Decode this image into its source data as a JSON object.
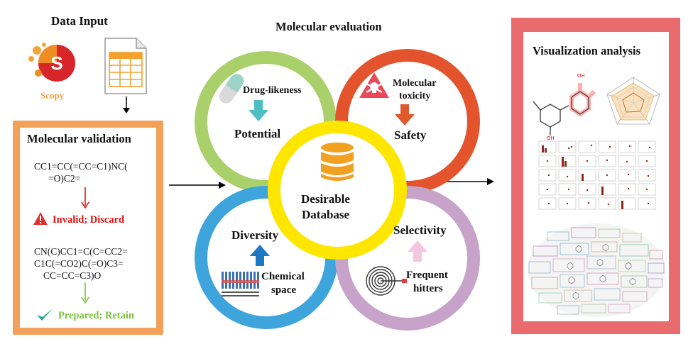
{
  "data_input": {
    "title": "Data Input",
    "scopy_label": "Scopy"
  },
  "validation": {
    "title": "Molecular validation",
    "smiles_invalid": [
      "CC1=CC(=CC=C1)NC(",
      "=O)C2="
    ],
    "invalid_label": "Invalid; Discard",
    "smiles_valid": [
      "CN(C)CC1=C(C=CC2=",
      "C1C(=CO2)C(=O)C3=",
      "CC=CC=C3)O"
    ],
    "valid_label": "Prepared; Retain"
  },
  "evaluation": {
    "title": "Molecular evaluation",
    "drug_likeness": "Drug-likeness",
    "potential": "Potential",
    "toxicity": [
      "Molecular",
      "toxicity"
    ],
    "safety": "Safety",
    "center": [
      "Desirable",
      "Database"
    ],
    "diversity": "Diversity",
    "chemical_space": [
      "Chemical",
      "space"
    ],
    "selectivity": "Selectivity",
    "frequent_hitters": [
      "Frequent",
      "hitters"
    ]
  },
  "visualization": {
    "title": "Visualization analysis"
  },
  "colors": {
    "orange_panel": "#f2a15a",
    "red_panel": "#ea6b6e",
    "green_ring": "#a9d06a",
    "red_ring": "#e3532c",
    "blue_ring": "#3ea4dc",
    "purple_ring": "#c8a3c9",
    "yellow_ring": "#ffe600",
    "invalid": "#e01010",
    "valid": "#7dc241"
  }
}
